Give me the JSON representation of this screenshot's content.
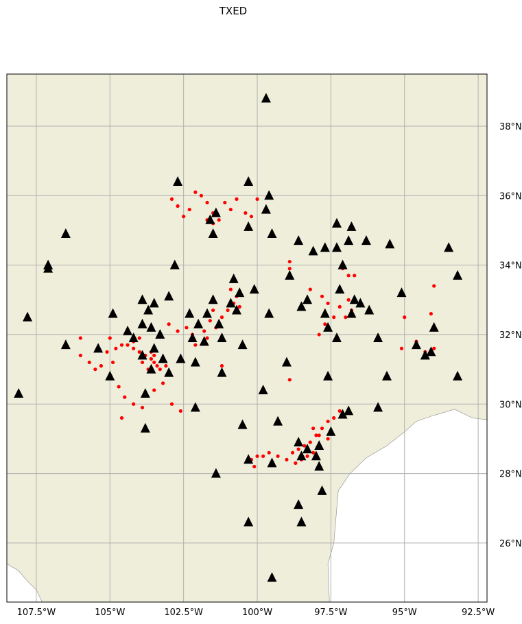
{
  "title": "TXED",
  "colors": {
    "land": "#efeedb",
    "water": "#ffffff",
    "grid": "#b0b0b0",
    "station": "#000000",
    "event": "#ff0000"
  },
  "map": {
    "extent": {
      "lon_min": -108.5,
      "lon_max": -92.2,
      "lat_min": 24.3,
      "lat_max": 39.5
    },
    "lon_ticks": [
      {
        "value": -107.5,
        "label": "107.5°W"
      },
      {
        "value": -105.0,
        "label": "105°W"
      },
      {
        "value": -102.5,
        "label": "102.5°W"
      },
      {
        "value": -100.0,
        "label": "100°W"
      },
      {
        "value": -97.5,
        "label": "97.5°W"
      },
      {
        "value": -95.0,
        "label": "95°W"
      },
      {
        "value": -92.5,
        "label": "92.5°W"
      }
    ],
    "lat_ticks": [
      {
        "value": 26,
        "label": "26°N"
      },
      {
        "value": 28,
        "label": "28°N"
      },
      {
        "value": 30,
        "label": "30°N"
      },
      {
        "value": 32,
        "label": "32°N"
      },
      {
        "value": 34,
        "label": "34°N"
      },
      {
        "value": 36,
        "label": "36°N"
      },
      {
        "value": 38,
        "label": "38°N"
      }
    ],
    "coastline_gulf": [
      [
        -97.55,
        24.3
      ],
      [
        -97.6,
        25.4
      ],
      [
        -97.4,
        26.0
      ],
      [
        -97.3,
        27.0
      ],
      [
        -97.25,
        27.5
      ],
      [
        -96.85,
        28.0
      ],
      [
        -96.3,
        28.45
      ],
      [
        -95.6,
        28.8
      ],
      [
        -95.0,
        29.2
      ],
      [
        -94.6,
        29.5
      ],
      [
        -94.1,
        29.65
      ],
      [
        -93.3,
        29.85
      ],
      [
        -92.7,
        29.6
      ],
      [
        -92.2,
        29.55
      ]
    ],
    "coastline_pacific": [
      [
        -108.5,
        25.4
      ],
      [
        -108.1,
        25.2
      ],
      [
        -107.8,
        24.9
      ],
      [
        -107.5,
        24.65
      ],
      [
        -107.3,
        24.3
      ]
    ],
    "stations": [
      [
        -99.7,
        38.8
      ],
      [
        -102.7,
        36.4
      ],
      [
        -100.3,
        36.4
      ],
      [
        -99.6,
        36.0
      ],
      [
        -99.7,
        35.6
      ],
      [
        -100.3,
        35.1
      ],
      [
        -99.5,
        34.9
      ],
      [
        -101.6,
        35.3
      ],
      [
        -101.4,
        35.5
      ],
      [
        -101.5,
        34.9
      ],
      [
        -106.5,
        34.9
      ],
      [
        -107.1,
        34.0
      ],
      [
        -107.1,
        33.9
      ],
      [
        -102.8,
        34.0
      ],
      [
        -107.8,
        32.5
      ],
      [
        -108.1,
        30.3
      ],
      [
        -106.5,
        31.7
      ],
      [
        -105.4,
        31.6
      ],
      [
        -104.9,
        32.6
      ],
      [
        -105.0,
        30.8
      ],
      [
        -104.2,
        31.9
      ],
      [
        -103.9,
        31.4
      ],
      [
        -103.6,
        32.2
      ],
      [
        -103.3,
        32.0
      ],
      [
        -103.5,
        31.6
      ],
      [
        -103.2,
        31.3
      ],
      [
        -103.6,
        31.0
      ],
      [
        -104.4,
        32.1
      ],
      [
        -103.9,
        32.3
      ],
      [
        -103.7,
        32.7
      ],
      [
        -103.5,
        32.9
      ],
      [
        -103.0,
        33.1
      ],
      [
        -103.9,
        33.0
      ],
      [
        -102.6,
        31.3
      ],
      [
        -103.0,
        30.9
      ],
      [
        -103.8,
        30.3
      ],
      [
        -103.8,
        29.3
      ],
      [
        -102.3,
        32.6
      ],
      [
        -102.0,
        32.3
      ],
      [
        -101.7,
        32.6
      ],
      [
        -101.3,
        32.3
      ],
      [
        -102.2,
        31.9
      ],
      [
        -101.8,
        31.8
      ],
      [
        -102.1,
        31.2
      ],
      [
        -102.1,
        29.9
      ],
      [
        -101.5,
        33.0
      ],
      [
        -101.2,
        31.9
      ],
      [
        -101.2,
        30.9
      ],
      [
        -100.8,
        33.6
      ],
      [
        -100.9,
        32.9
      ],
      [
        -100.6,
        33.2
      ],
      [
        -100.7,
        32.7
      ],
      [
        -100.1,
        33.3
      ],
      [
        -100.5,
        31.7
      ],
      [
        -99.6,
        32.6
      ],
      [
        -99.8,
        30.4
      ],
      [
        -99.3,
        29.5
      ],
      [
        -99.0,
        31.2
      ],
      [
        -100.5,
        29.4
      ],
      [
        -101.4,
        28.0
      ],
      [
        -100.3,
        28.4
      ],
      [
        -99.5,
        28.3
      ],
      [
        -98.6,
        34.7
      ],
      [
        -98.9,
        33.7
      ],
      [
        -98.1,
        34.4
      ],
      [
        -97.7,
        34.5
      ],
      [
        -97.3,
        35.2
      ],
      [
        -96.8,
        35.1
      ],
      [
        -97.3,
        34.5
      ],
      [
        -96.9,
        34.7
      ],
      [
        -96.3,
        34.7
      ],
      [
        -97.1,
        34.0
      ],
      [
        -98.3,
        33.0
      ],
      [
        -98.5,
        32.8
      ],
      [
        -97.7,
        32.6
      ],
      [
        -97.2,
        33.3
      ],
      [
        -96.8,
        32.6
      ],
      [
        -97.6,
        32.2
      ],
      [
        -97.3,
        31.9
      ],
      [
        -96.7,
        33.0
      ],
      [
        -96.5,
        32.9
      ],
      [
        -96.2,
        32.7
      ],
      [
        -95.9,
        31.9
      ],
      [
        -95.6,
        30.8
      ],
      [
        -95.9,
        29.9
      ],
      [
        -97.6,
        30.8
      ],
      [
        -96.9,
        29.8
      ],
      [
        -97.1,
        29.7
      ],
      [
        -97.5,
        29.2
      ],
      [
        -97.9,
        28.8
      ],
      [
        -98.3,
        28.7
      ],
      [
        -98.6,
        28.9
      ],
      [
        -98.5,
        28.5
      ],
      [
        -98.0,
        28.5
      ],
      [
        -97.9,
        28.2
      ],
      [
        -97.8,
        27.5
      ],
      [
        -98.6,
        27.1
      ],
      [
        -98.5,
        26.6
      ],
      [
        -100.3,
        26.6
      ],
      [
        -99.5,
        25.0
      ],
      [
        -95.1,
        33.2
      ],
      [
        -95.5,
        34.6
      ],
      [
        -93.5,
        34.5
      ],
      [
        -93.2,
        33.7
      ],
      [
        -94.0,
        32.2
      ],
      [
        -94.6,
        31.7
      ],
      [
        -94.1,
        31.5
      ],
      [
        -94.3,
        31.4
      ],
      [
        -93.2,
        30.8
      ]
    ],
    "events": [
      [
        -104.4,
        31.7
      ],
      [
        -104.2,
        31.6
      ],
      [
        -104.0,
        31.5
      ],
      [
        -103.8,
        31.4
      ],
      [
        -103.6,
        31.3
      ],
      [
        -103.5,
        31.2
      ],
      [
        -103.4,
        31.1
      ],
      [
        -103.3,
        31.0
      ],
      [
        -103.6,
        31.5
      ],
      [
        -103.9,
        31.2
      ],
      [
        -103.7,
        31.0
      ],
      [
        -104.2,
        31.8
      ],
      [
        -104.0,
        31.9
      ],
      [
        -103.5,
        31.4
      ],
      [
        -103.2,
        31.3
      ],
      [
        -103.1,
        31.1
      ],
      [
        -104.6,
        31.7
      ],
      [
        -104.8,
        31.6
      ],
      [
        -105.0,
        31.9
      ],
      [
        -105.1,
        31.5
      ],
      [
        -104.9,
        31.2
      ],
      [
        -105.3,
        31.1
      ],
      [
        -105.5,
        31.0
      ],
      [
        -105.0,
        30.8
      ],
      [
        -104.7,
        30.5
      ],
      [
        -104.5,
        30.2
      ],
      [
        -104.2,
        30.0
      ],
      [
        -104.6,
        29.6
      ],
      [
        -103.9,
        29.9
      ],
      [
        -103.5,
        30.4
      ],
      [
        -103.2,
        30.6
      ],
      [
        -102.9,
        30.0
      ],
      [
        -102.6,
        29.8
      ],
      [
        -106.0,
        31.9
      ],
      [
        -106.0,
        31.4
      ],
      [
        -105.7,
        31.2
      ],
      [
        -103.0,
        32.3
      ],
      [
        -102.7,
        32.1
      ],
      [
        -102.4,
        32.2
      ],
      [
        -102.2,
        32.0
      ],
      [
        -102.0,
        32.3
      ],
      [
        -101.8,
        32.1
      ],
      [
        -101.6,
        32.4
      ],
      [
        -101.4,
        32.2
      ],
      [
        -102.1,
        31.7
      ],
      [
        -101.7,
        31.9
      ],
      [
        -101.2,
        32.5
      ],
      [
        -101.0,
        32.7
      ],
      [
        -100.8,
        32.9
      ],
      [
        -100.7,
        33.1
      ],
      [
        -100.6,
        32.8
      ],
      [
        -100.9,
        33.3
      ],
      [
        -101.2,
        31.1
      ],
      [
        -101.5,
        32.7
      ],
      [
        -102.1,
        36.1
      ],
      [
        -101.9,
        36.0
      ],
      [
        -101.7,
        35.8
      ],
      [
        -101.5,
        35.5
      ],
      [
        -101.3,
        35.3
      ],
      [
        -101.5,
        35.2
      ],
      [
        -101.7,
        35.3
      ],
      [
        -102.5,
        35.4
      ],
      [
        -102.7,
        35.7
      ],
      [
        -102.9,
        35.9
      ],
      [
        -102.3,
        35.6
      ],
      [
        -100.7,
        35.9
      ],
      [
        -100.4,
        35.5
      ],
      [
        -100.2,
        35.4
      ],
      [
        -100.9,
        35.6
      ],
      [
        -101.1,
        35.8
      ],
      [
        -100.0,
        35.9
      ],
      [
        -98.9,
        34.1
      ],
      [
        -98.9,
        33.9
      ],
      [
        -98.2,
        33.3
      ],
      [
        -97.8,
        33.1
      ],
      [
        -97.6,
        32.9
      ],
      [
        -97.2,
        32.8
      ],
      [
        -96.9,
        33.0
      ],
      [
        -96.8,
        32.7
      ],
      [
        -97.4,
        32.5
      ],
      [
        -97.7,
        32.3
      ],
      [
        -97.9,
        32.0
      ],
      [
        -97.0,
        32.5
      ],
      [
        -96.9,
        33.7
      ],
      [
        -96.7,
        33.7
      ],
      [
        -97.1,
        33.9
      ],
      [
        -95.0,
        32.5
      ],
      [
        -94.6,
        31.8
      ],
      [
        -94.3,
        31.5
      ],
      [
        -94.0,
        31.6
      ],
      [
        -94.1,
        32.6
      ],
      [
        -94.0,
        33.4
      ],
      [
        -95.1,
        31.6
      ],
      [
        -98.0,
        29.1
      ],
      [
        -98.2,
        28.9
      ],
      [
        -98.4,
        28.8
      ],
      [
        -98.6,
        28.7
      ],
      [
        -98.8,
        28.6
      ],
      [
        -97.8,
        29.3
      ],
      [
        -97.6,
        29.5
      ],
      [
        -97.4,
        29.6
      ],
      [
        -97.2,
        29.8
      ],
      [
        -98.1,
        28.6
      ],
      [
        -98.3,
        28.5
      ],
      [
        -98.5,
        28.4
      ],
      [
        -98.7,
        28.3
      ],
      [
        -99.0,
        28.4
      ],
      [
        -99.3,
        28.5
      ],
      [
        -99.6,
        28.6
      ],
      [
        -99.8,
        28.5
      ],
      [
        -100.0,
        28.5
      ],
      [
        -100.1,
        28.2
      ],
      [
        -100.2,
        28.4
      ],
      [
        -98.9,
        30.7
      ],
      [
        -97.6,
        29.0
      ],
      [
        -97.9,
        29.1
      ],
      [
        -98.1,
        29.3
      ]
    ]
  }
}
